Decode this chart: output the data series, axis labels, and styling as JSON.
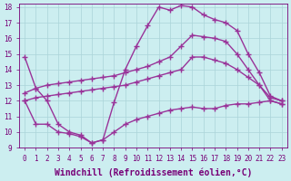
{
  "xlabel": "Windchill (Refroidissement éolien,°C)",
  "bg_color": "#cceef0",
  "line_color": "#993399",
  "grid_color": "#aad4d8",
  "xlim": [
    -0.5,
    23.5
  ],
  "ylim": [
    9,
    18.2
  ],
  "yticks": [
    9,
    10,
    11,
    12,
    13,
    14,
    15,
    16,
    17,
    18
  ],
  "xticks": [
    0,
    1,
    2,
    3,
    4,
    5,
    6,
    7,
    8,
    9,
    10,
    11,
    12,
    13,
    14,
    15,
    16,
    17,
    18,
    19,
    20,
    21,
    22,
    23
  ],
  "line1_x": [
    0,
    1,
    2,
    3,
    4,
    5,
    6,
    7,
    8,
    9,
    10,
    11,
    12,
    13,
    14,
    15,
    16,
    17,
    18,
    19,
    20,
    21,
    22,
    23
  ],
  "line1_y": [
    14.8,
    12.8,
    12.0,
    10.5,
    10.0,
    9.8,
    9.3,
    9.5,
    11.9,
    14.0,
    15.5,
    16.8,
    18.0,
    17.8,
    18.1,
    18.0,
    17.5,
    17.2,
    17.0,
    16.5,
    15.0,
    13.8,
    12.3,
    12.0
  ],
  "line2_x": [
    0,
    1,
    2,
    3,
    4,
    5,
    6,
    7,
    8,
    9,
    10,
    11,
    12,
    13,
    14,
    15,
    16,
    17,
    18,
    19,
    20,
    21,
    22,
    23
  ],
  "line2_y": [
    12.5,
    12.8,
    13.0,
    13.1,
    13.2,
    13.3,
    13.4,
    13.5,
    13.6,
    13.8,
    14.0,
    14.2,
    14.5,
    14.8,
    15.5,
    16.2,
    16.1,
    16.0,
    15.8,
    15.0,
    14.0,
    13.0,
    12.2,
    12.0
  ],
  "line3_x": [
    0,
    1,
    2,
    3,
    4,
    5,
    6,
    7,
    8,
    9,
    10,
    11,
    12,
    13,
    14,
    15,
    16,
    17,
    18,
    19,
    20,
    21,
    22,
    23
  ],
  "line3_y": [
    12.0,
    12.2,
    12.3,
    12.4,
    12.5,
    12.6,
    12.7,
    12.8,
    12.9,
    13.0,
    13.2,
    13.4,
    13.6,
    13.8,
    14.0,
    14.8,
    14.8,
    14.6,
    14.4,
    14.0,
    13.5,
    13.0,
    12.0,
    11.8
  ],
  "line4_x": [
    0,
    1,
    2,
    3,
    4,
    5,
    6,
    7,
    8,
    9,
    10,
    11,
    12,
    13,
    14,
    15,
    16,
    17,
    18,
    19,
    20,
    21,
    22,
    23
  ],
  "line4_y": [
    12.0,
    10.5,
    10.5,
    10.0,
    9.9,
    9.7,
    9.3,
    9.5,
    10.0,
    10.5,
    10.8,
    11.0,
    11.2,
    11.4,
    11.5,
    11.6,
    11.5,
    11.5,
    11.7,
    11.8,
    11.8,
    11.9,
    12.0,
    11.8
  ],
  "marker": "+",
  "marker_size": 4,
  "line_width": 1.0,
  "font_color": "#770077",
  "tick_fontsize": 5.5,
  "label_fontsize": 7
}
